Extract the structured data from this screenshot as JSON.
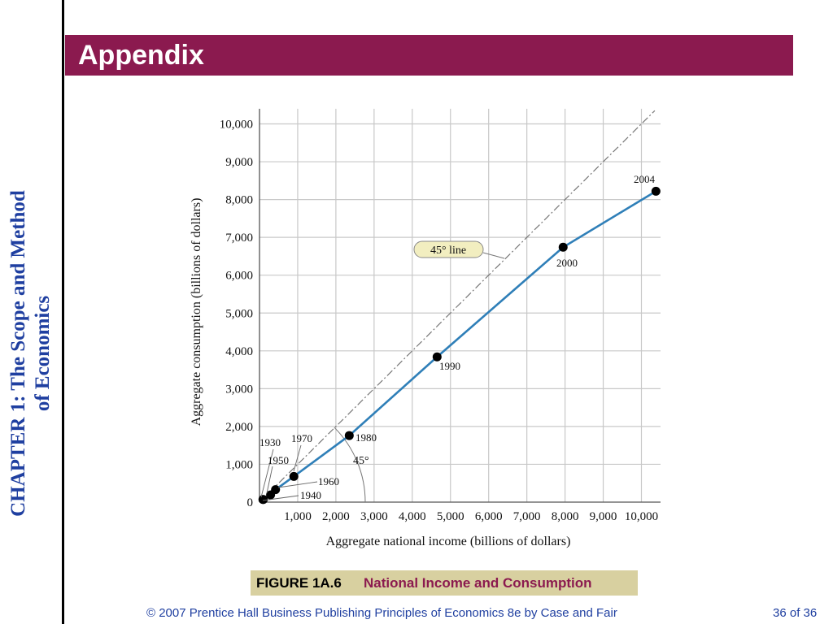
{
  "side_label": {
    "line1": "CHAPTER 1:  The Scope and Method",
    "line2": "of Economics"
  },
  "banner": {
    "title": "Appendix"
  },
  "caption": {
    "label": "FIGURE 1A.6",
    "title": "National Income and Consumption"
  },
  "footer": {
    "copyright": "© 2007 Prentice Hall Business Publishing   Principles of Economics 8e by Case and Fair",
    "page": "36 of 36"
  },
  "colors": {
    "banner": "#8b1a4f",
    "side_text": "#1f3fa0",
    "series": "#2f7fb8",
    "caption_bg": "#d8d0a0",
    "grid": "#c8c8c8"
  },
  "chart_data": {
    "type": "line",
    "xlabel": "Aggregate national income (billions of dollars)",
    "ylabel": "Aggregate consumption (billions of dollars)",
    "xlim": [
      0,
      10500
    ],
    "ylim": [
      0,
      10400
    ],
    "grid": true,
    "x_ticks": [
      {
        "value": 1000,
        "label": "1,000"
      },
      {
        "value": 2000,
        "label": "2,000"
      },
      {
        "value": 3000,
        "label": "3,000"
      },
      {
        "value": 4000,
        "label": "4,000"
      },
      {
        "value": 5000,
        "label": "5,000"
      },
      {
        "value": 6000,
        "label": "6,000"
      },
      {
        "value": 7000,
        "label": "7,000"
      },
      {
        "value": 8000,
        "label": "8,000"
      },
      {
        "value": 9000,
        "label": "9,000"
      },
      {
        "value": 10000,
        "label": "10,000"
      }
    ],
    "y_ticks": [
      {
        "value": 0,
        "label": "0"
      },
      {
        "value": 1000,
        "label": "1,000"
      },
      {
        "value": 2000,
        "label": "2,000"
      },
      {
        "value": 3000,
        "label": "3,000"
      },
      {
        "value": 4000,
        "label": "4,000"
      },
      {
        "value": 5000,
        "label": "5,000"
      },
      {
        "value": 6000,
        "label": "6,000"
      },
      {
        "value": 7000,
        "label": "7,000"
      },
      {
        "value": 8000,
        "label": "8,000"
      },
      {
        "value": 9000,
        "label": "9,000"
      },
      {
        "value": 10000,
        "label": "10,000"
      }
    ],
    "points": [
      {
        "year": "1930",
        "x": 90,
        "y": 70
      },
      {
        "year": "1940",
        "x": 100,
        "y": 70
      },
      {
        "year": "1950",
        "x": 290,
        "y": 190
      },
      {
        "year": "1960",
        "x": 420,
        "y": 330
      },
      {
        "year": "1970",
        "x": 900,
        "y": 680
      },
      {
        "year": "1980",
        "x": 2350,
        "y": 1760
      },
      {
        "year": "1990",
        "x": 4650,
        "y": 3840
      },
      {
        "year": "2000",
        "x": 7950,
        "y": 6740
      },
      {
        "year": "2004",
        "x": 10380,
        "y": 8220
      }
    ],
    "reference_line": {
      "label": "45° line",
      "from": [
        0,
        0
      ],
      "to": [
        10350,
        10350
      ]
    },
    "angle_label": "45°"
  }
}
